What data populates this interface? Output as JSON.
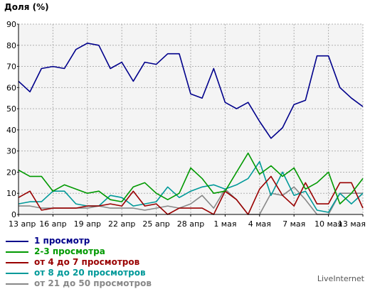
{
  "chart_data": {
    "type": "line",
    "ylabel": "Доля (%)",
    "ylim": [
      0,
      90
    ],
    "yticks": [
      0,
      10,
      20,
      30,
      40,
      50,
      60,
      70,
      80,
      90
    ],
    "grid": true,
    "legend_position": "bottom-left",
    "x_tick_labels": [
      "13 апр",
      "16 апр",
      "19 апр",
      "22 апр",
      "25 апр",
      "28 апр",
      "1 мая",
      "4 мая",
      "7 мая",
      "10 мая",
      "13 мая"
    ],
    "x_points": 31,
    "series": [
      {
        "name": "1 просмотр",
        "color": "#00008b",
        "values": [
          63,
          58,
          69,
          70,
          69,
          78,
          81,
          80,
          69,
          72,
          63,
          72,
          71,
          76,
          76,
          57,
          55,
          69,
          53,
          50,
          53,
          44,
          36,
          41,
          52,
          54,
          75,
          75,
          60,
          55,
          51
        ]
      },
      {
        "name": "2-3 просмотра",
        "color": "#009900",
        "values": [
          21,
          18,
          18,
          11,
          14,
          12,
          10,
          11,
          7,
          6,
          13,
          15,
          10,
          7,
          10,
          22,
          17,
          10,
          11,
          20,
          29,
          19,
          23,
          18,
          22,
          12,
          15,
          20,
          5,
          10,
          17
        ]
      },
      {
        "name": "от 4 до 7 просмотров",
        "color": "#990000",
        "values": [
          8,
          11,
          2,
          3,
          3,
          3,
          4,
          4,
          5,
          4,
          11,
          4,
          5,
          0,
          3,
          3,
          3,
          0,
          11,
          7,
          0,
          12,
          18,
          9,
          4,
          15,
          5,
          5,
          15,
          15,
          3
        ]
      },
      {
        "name": "от 8 до 20 просмотров",
        "color": "#009999",
        "values": [
          5,
          6,
          6,
          11,
          11,
          5,
          4,
          4,
          9,
          8,
          4,
          5,
          6,
          13,
          8,
          11,
          13,
          14,
          12,
          14,
          17,
          25,
          9,
          20,
          9,
          11,
          2,
          1,
          10,
          5,
          10
        ]
      },
      {
        "name": "от 21 до 50 просмотров",
        "color": "#888888",
        "values": [
          4,
          4,
          3,
          3,
          3,
          3,
          3,
          4,
          3,
          3,
          3,
          2,
          3,
          4,
          3,
          5,
          9,
          3,
          12,
          7,
          0,
          0,
          10,
          9,
          13,
          7,
          0,
          0,
          10,
          10,
          10
        ]
      }
    ]
  },
  "footer": {
    "brand": "LiveInternet"
  }
}
